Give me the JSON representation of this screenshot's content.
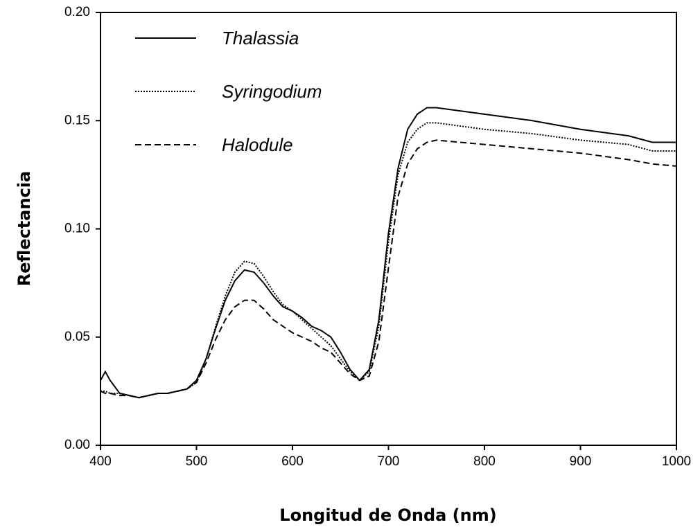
{
  "chart_data": {
    "type": "line",
    "x_label": "Longitud de Onda (nm)",
    "y_label": "Reflectancia",
    "x": [
      400,
      405,
      410,
      420,
      430,
      440,
      450,
      460,
      470,
      480,
      490,
      500,
      510,
      520,
      530,
      540,
      550,
      560,
      570,
      580,
      590,
      600,
      610,
      620,
      630,
      640,
      650,
      660,
      670,
      680,
      690,
      700,
      710,
      720,
      730,
      740,
      750,
      800,
      850,
      900,
      950,
      975,
      1000
    ],
    "series": [
      {
        "name": "Thalassia",
        "color": "#000000",
        "dash": "solid",
        "values": [
          0.03,
          0.034,
          0.03,
          0.024,
          0.023,
          0.022,
          0.023,
          0.024,
          0.024,
          0.025,
          0.026,
          0.03,
          0.04,
          0.054,
          0.067,
          0.076,
          0.081,
          0.08,
          0.075,
          0.069,
          0.064,
          0.062,
          0.059,
          0.055,
          0.053,
          0.05,
          0.043,
          0.035,
          0.03,
          0.035,
          0.058,
          0.098,
          0.128,
          0.146,
          0.153,
          0.156,
          0.156,
          0.153,
          0.15,
          0.146,
          0.143,
          0.14,
          0.14
        ]
      },
      {
        "name": "Syringodium",
        "color": "#000000",
        "dash": "dotted",
        "values": [
          0.025,
          0.025,
          0.024,
          0.024,
          0.023,
          0.022,
          0.023,
          0.024,
          0.024,
          0.025,
          0.026,
          0.029,
          0.04,
          0.055,
          0.069,
          0.08,
          0.085,
          0.084,
          0.078,
          0.071,
          0.065,
          0.062,
          0.058,
          0.054,
          0.05,
          0.046,
          0.04,
          0.034,
          0.03,
          0.034,
          0.055,
          0.094,
          0.125,
          0.14,
          0.146,
          0.149,
          0.149,
          0.146,
          0.144,
          0.141,
          0.139,
          0.136,
          0.136
        ]
      },
      {
        "name": "Halodule",
        "color": "#000000",
        "dash": "dashed",
        "values": [
          0.025,
          0.024,
          0.024,
          0.023,
          0.023,
          0.022,
          0.023,
          0.024,
          0.024,
          0.025,
          0.026,
          0.029,
          0.038,
          0.049,
          0.058,
          0.064,
          0.067,
          0.067,
          0.063,
          0.058,
          0.055,
          0.052,
          0.05,
          0.048,
          0.045,
          0.043,
          0.038,
          0.033,
          0.03,
          0.032,
          0.048,
          0.082,
          0.115,
          0.13,
          0.137,
          0.14,
          0.141,
          0.139,
          0.137,
          0.135,
          0.132,
          0.13,
          0.129
        ]
      }
    ],
    "xlim": [
      400,
      1000
    ],
    "xticks": [
      400,
      500,
      600,
      700,
      800,
      900,
      1000
    ],
    "ylim": [
      0,
      0.2
    ],
    "yticks": [
      {
        "value": 0,
        "label": "0.00"
      },
      {
        "value": 0.05,
        "label": "0.05"
      },
      {
        "value": 0.1,
        "label": "0.10"
      },
      {
        "value": 0.15,
        "label": "0.15"
      },
      {
        "value": 0.2,
        "label": "0.20"
      }
    ],
    "grid": false,
    "legend": "upper left"
  }
}
